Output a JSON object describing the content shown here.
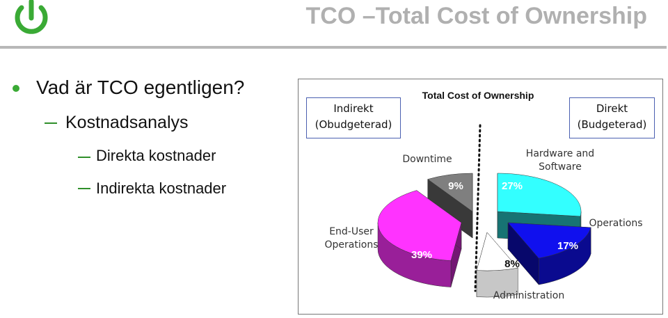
{
  "header": {
    "title": "TCO –Total Cost of Ownership"
  },
  "bullets": {
    "level1": "Vad är TCO egentligen?",
    "level2": "Kostnadsanalys",
    "level3": [
      "Direkta kostnader",
      "Indirekta kostnader"
    ]
  },
  "chart_data": {
    "type": "pie",
    "title": "Total Cost of Ownership",
    "annotations": [
      {
        "title": "Indirekt",
        "subtitle": "(Obudgeterad)"
      },
      {
        "title": "Direkt",
        "subtitle": "(Budgeterad)"
      }
    ],
    "categories": [
      "Hardware and Software",
      "Operations",
      "Administration",
      "End-User Operations",
      "Downtime"
    ],
    "values": [
      27,
      17,
      8,
      39,
      9
    ],
    "value_labels": [
      "27%",
      "17%",
      "8%",
      "39%",
      "9%"
    ],
    "colors": [
      "#33ffff",
      "#1010ee",
      "#ffffff",
      "#ff33ff",
      "#7f7f7f"
    ]
  }
}
